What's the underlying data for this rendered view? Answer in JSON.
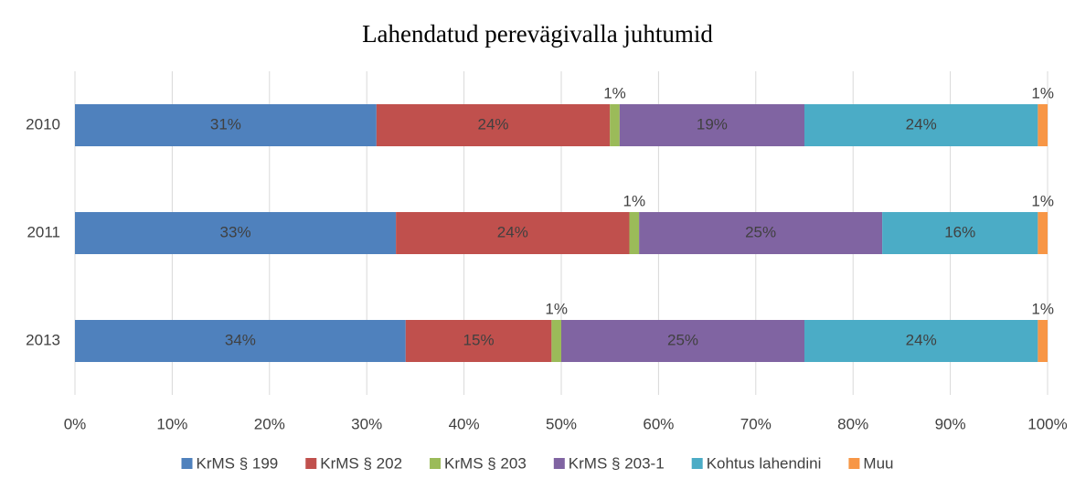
{
  "chart_data": {
    "type": "stacked-barh",
    "title": "Lahendatud perevägivalla juhtumid",
    "categories": [
      "2010",
      "2011",
      "2013"
    ],
    "series": [
      {
        "name": "KrMS § 199",
        "color": "#4f81bd",
        "values": [
          31,
          33,
          34
        ],
        "value_labels": [
          "31%",
          "33%",
          "34%"
        ]
      },
      {
        "name": "KrMS § 202",
        "color": "#c0504d",
        "values": [
          24,
          24,
          15
        ],
        "value_labels": [
          "24%",
          "24%",
          "15%"
        ]
      },
      {
        "name": "KrMS § 203",
        "color": "#9bbb59",
        "values": [
          1,
          1,
          1
        ],
        "value_labels": [
          "1%",
          "1%",
          "1%"
        ]
      },
      {
        "name": "KrMS § 203-1",
        "color": "#8064a2",
        "values": [
          19,
          25,
          25
        ],
        "value_labels": [
          "19%",
          "25%",
          "25%"
        ]
      },
      {
        "name": "Kohtus lahendini",
        "color": "#4bacc6",
        "values": [
          24,
          16,
          24
        ],
        "value_labels": [
          "24%",
          "16%",
          "24%"
        ]
      },
      {
        "name": "Muu",
        "color": "#f79646",
        "values": [
          1,
          1,
          1
        ],
        "value_labels": [
          "1%",
          "1%",
          "1%"
        ]
      }
    ],
    "xlim": [
      0,
      100
    ],
    "xticks": [
      {
        "value": 0,
        "label": "0%"
      },
      {
        "value": 10,
        "label": "10%"
      },
      {
        "value": 20,
        "label": "20%"
      },
      {
        "value": 30,
        "label": "30%"
      },
      {
        "value": 40,
        "label": "40%"
      },
      {
        "value": 50,
        "label": "50%"
      },
      {
        "value": 60,
        "label": "60%"
      },
      {
        "value": 70,
        "label": "70%"
      },
      {
        "value": 80,
        "label": "80%"
      },
      {
        "value": 90,
        "label": "90%"
      },
      {
        "value": 100,
        "label": "100%"
      }
    ],
    "grid": true,
    "legend": "bottom"
  }
}
